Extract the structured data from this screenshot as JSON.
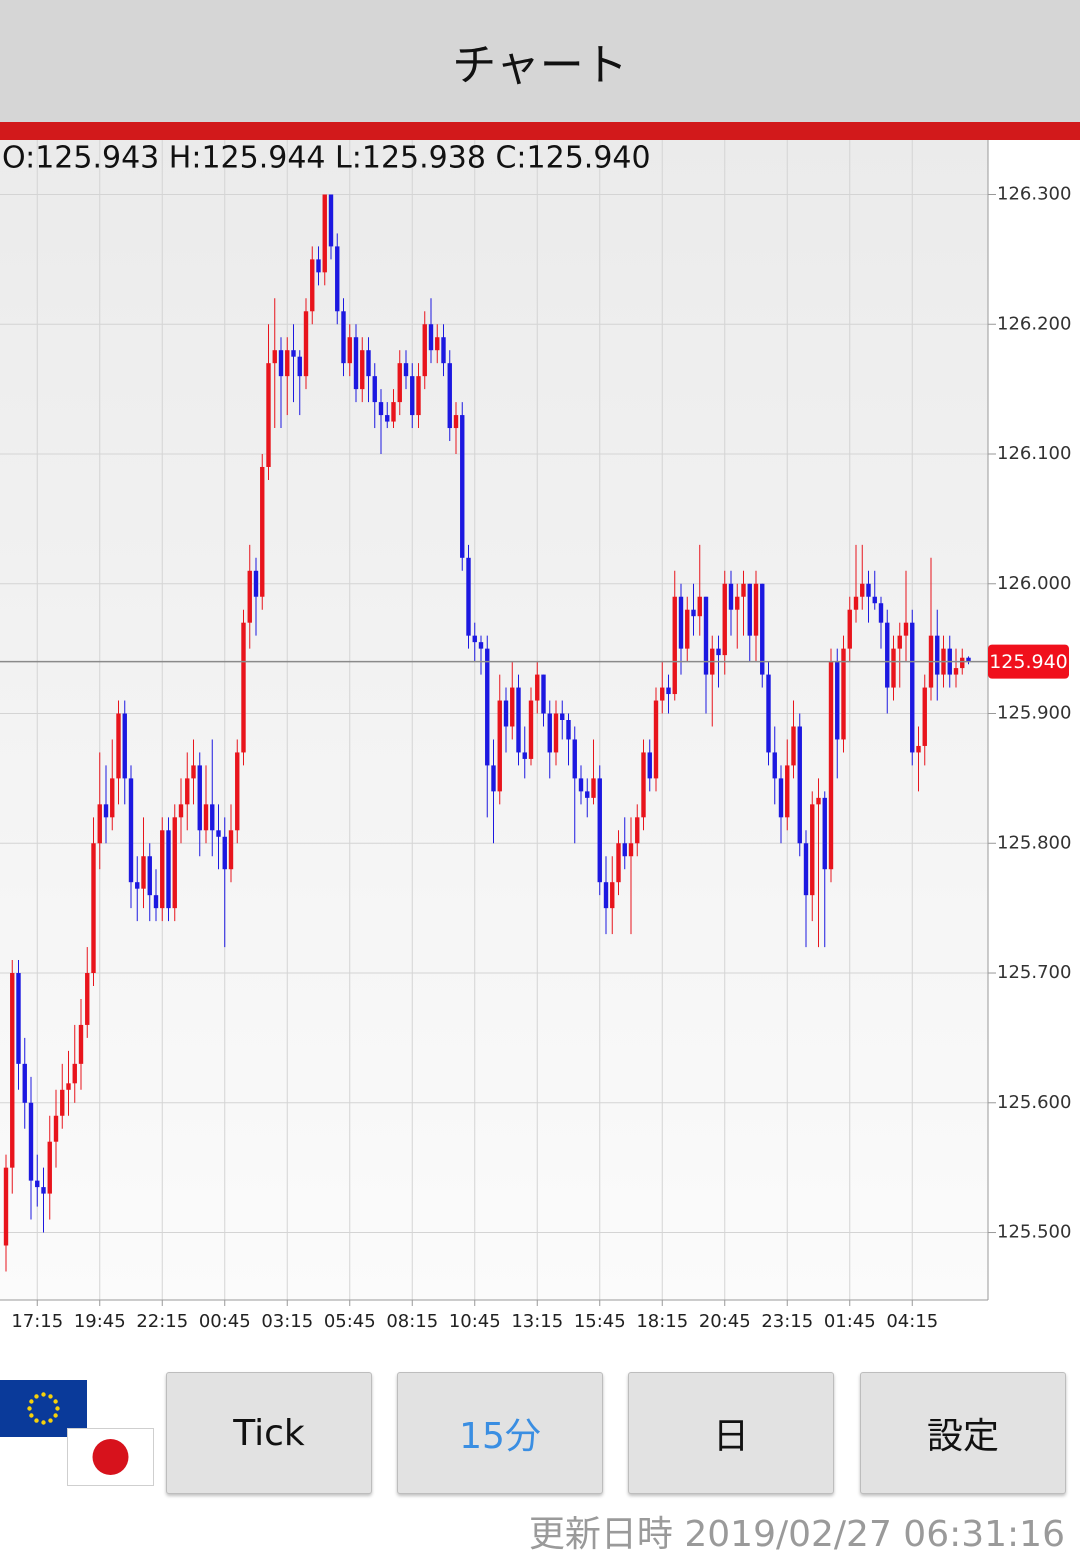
{
  "header": {
    "title": "チャート"
  },
  "chart_data": {
    "type": "candlestick",
    "ohlc_text": "O:125.943 H:125.944 L:125.938 C:125.940",
    "up_color": "#e8141c",
    "down_color": "#1c18e0",
    "grid": true,
    "ylim": [
      125.448,
      126.342
    ],
    "yticks": [
      {
        "value": 125.5,
        "label": "125.500"
      },
      {
        "value": 125.6,
        "label": "125.600"
      },
      {
        "value": 125.7,
        "label": "125.700"
      },
      {
        "value": 125.8,
        "label": "125.800"
      },
      {
        "value": 125.9,
        "label": "125.900"
      },
      {
        "value": 126.0,
        "label": "126.000"
      },
      {
        "value": 126.1,
        "label": "126.100"
      },
      {
        "value": 126.2,
        "label": "126.200"
      },
      {
        "value": 126.3,
        "label": "126.300"
      }
    ],
    "current_price": {
      "value": 125.94,
      "label": "125.940"
    },
    "categories": [
      null,
      null,
      null,
      null,
      null,
      "17:15",
      null,
      null,
      null,
      null,
      null,
      null,
      null,
      null,
      null,
      "19:45",
      null,
      null,
      null,
      null,
      null,
      null,
      null,
      null,
      null,
      "22:15",
      null,
      null,
      null,
      null,
      null,
      null,
      null,
      null,
      null,
      "00:45",
      null,
      null,
      null,
      null,
      null,
      null,
      null,
      null,
      null,
      "03:15",
      null,
      null,
      null,
      null,
      null,
      null,
      null,
      null,
      null,
      "05:45",
      null,
      null,
      null,
      null,
      null,
      null,
      null,
      null,
      null,
      "08:15",
      null,
      null,
      null,
      null,
      null,
      null,
      null,
      null,
      null,
      "10:45",
      null,
      null,
      null,
      null,
      null,
      null,
      null,
      null,
      null,
      "13:15",
      null,
      null,
      null,
      null,
      null,
      null,
      null,
      null,
      null,
      "15:45",
      null,
      null,
      null,
      null,
      null,
      null,
      null,
      null,
      null,
      "18:15",
      null,
      null,
      null,
      null,
      null,
      null,
      null,
      null,
      null,
      "20:45",
      null,
      null,
      null,
      null,
      null,
      null,
      null,
      null,
      null,
      "23:15",
      null,
      null,
      null,
      null,
      null,
      null,
      null,
      null,
      null,
      "01:45",
      null,
      null,
      null,
      null,
      null,
      null,
      null,
      null,
      null,
      "04:15",
      null,
      null,
      null,
      null,
      null,
      null,
      null,
      null,
      null
    ],
    "ohlc": [
      [
        125.49,
        125.56,
        125.47,
        125.55
      ],
      [
        125.55,
        125.71,
        125.53,
        125.7
      ],
      [
        125.7,
        125.71,
        125.61,
        125.63
      ],
      [
        125.63,
        125.65,
        125.58,
        125.6
      ],
      [
        125.6,
        125.62,
        125.51,
        125.54
      ],
      [
        125.54,
        125.56,
        125.52,
        125.535
      ],
      [
        125.535,
        125.55,
        125.5,
        125.53
      ],
      [
        125.53,
        125.59,
        125.51,
        125.57
      ],
      [
        125.57,
        125.61,
        125.55,
        125.59
      ],
      [
        125.59,
        125.63,
        125.58,
        125.61
      ],
      [
        125.61,
        125.64,
        125.59,
        125.615
      ],
      [
        125.615,
        125.66,
        125.6,
        125.63
      ],
      [
        125.63,
        125.68,
        125.61,
        125.66
      ],
      [
        125.66,
        125.72,
        125.65,
        125.7
      ],
      [
        125.7,
        125.82,
        125.69,
        125.8
      ],
      [
        125.8,
        125.87,
        125.78,
        125.83
      ],
      [
        125.83,
        125.86,
        125.8,
        125.82
      ],
      [
        125.82,
        125.88,
        125.81,
        125.85
      ],
      [
        125.85,
        125.91,
        125.83,
        125.9
      ],
      [
        125.9,
        125.91,
        125.83,
        125.85
      ],
      [
        125.85,
        125.86,
        125.75,
        125.77
      ],
      [
        125.77,
        125.79,
        125.74,
        125.765
      ],
      [
        125.765,
        125.82,
        125.75,
        125.79
      ],
      [
        125.79,
        125.8,
        125.74,
        125.76
      ],
      [
        125.76,
        125.78,
        125.74,
        125.75
      ],
      [
        125.75,
        125.82,
        125.74,
        125.81
      ],
      [
        125.81,
        125.82,
        125.74,
        125.75
      ],
      [
        125.75,
        125.83,
        125.74,
        125.82
      ],
      [
        125.82,
        125.85,
        125.8,
        125.83
      ],
      [
        125.83,
        125.87,
        125.81,
        125.85
      ],
      [
        125.85,
        125.88,
        125.83,
        125.86
      ],
      [
        125.86,
        125.87,
        125.79,
        125.81
      ],
      [
        125.81,
        125.86,
        125.8,
        125.83
      ],
      [
        125.83,
        125.88,
        125.79,
        125.81
      ],
      [
        125.81,
        125.83,
        125.78,
        125.805
      ],
      [
        125.805,
        125.82,
        125.72,
        125.78
      ],
      [
        125.78,
        125.83,
        125.77,
        125.81
      ],
      [
        125.81,
        125.88,
        125.8,
        125.87
      ],
      [
        125.87,
        125.98,
        125.86,
        125.97
      ],
      [
        125.97,
        126.03,
        125.95,
        126.01
      ],
      [
        126.01,
        126.02,
        125.96,
        125.99
      ],
      [
        125.99,
        126.1,
        125.98,
        126.09
      ],
      [
        126.09,
        126.2,
        126.08,
        126.17
      ],
      [
        126.17,
        126.22,
        126.12,
        126.18
      ],
      [
        126.18,
        126.19,
        126.12,
        126.16
      ],
      [
        126.16,
        126.19,
        126.13,
        126.18
      ],
      [
        126.18,
        126.2,
        126.14,
        126.175
      ],
      [
        126.175,
        126.18,
        126.13,
        126.16
      ],
      [
        126.16,
        126.22,
        126.15,
        126.21
      ],
      [
        126.21,
        126.26,
        126.2,
        126.25
      ],
      [
        126.25,
        126.26,
        126.23,
        126.24
      ],
      [
        126.24,
        126.3,
        126.23,
        126.3
      ],
      [
        126.3,
        126.3,
        126.25,
        126.26
      ],
      [
        126.26,
        126.27,
        126.2,
        126.21
      ],
      [
        126.21,
        126.22,
        126.16,
        126.17
      ],
      [
        126.17,
        126.2,
        126.16,
        126.19
      ],
      [
        126.19,
        126.2,
        126.14,
        126.15
      ],
      [
        126.15,
        126.19,
        126.14,
        126.18
      ],
      [
        126.18,
        126.19,
        126.14,
        126.16
      ],
      [
        126.16,
        126.17,
        126.12,
        126.14
      ],
      [
        126.14,
        126.15,
        126.1,
        126.13
      ],
      [
        126.13,
        126.14,
        126.12,
        126.125
      ],
      [
        126.125,
        126.15,
        126.12,
        126.14
      ],
      [
        126.14,
        126.18,
        126.13,
        126.17
      ],
      [
        126.17,
        126.18,
        126.15,
        126.16
      ],
      [
        126.16,
        126.17,
        126.12,
        126.13
      ],
      [
        126.13,
        126.17,
        126.12,
        126.16
      ],
      [
        126.16,
        126.21,
        126.15,
        126.2
      ],
      [
        126.2,
        126.22,
        126.17,
        126.18
      ],
      [
        126.18,
        126.2,
        126.17,
        126.19
      ],
      [
        126.19,
        126.2,
        126.16,
        126.17
      ],
      [
        126.17,
        126.18,
        126.11,
        126.12
      ],
      [
        126.12,
        126.14,
        126.1,
        126.13
      ],
      [
        126.13,
        126.14,
        126.01,
        126.02
      ],
      [
        126.02,
        126.03,
        125.95,
        125.96
      ],
      [
        125.96,
        125.97,
        125.94,
        125.955
      ],
      [
        125.955,
        125.96,
        125.93,
        125.95
      ],
      [
        125.95,
        125.96,
        125.82,
        125.86
      ],
      [
        125.86,
        125.88,
        125.8,
        125.84
      ],
      [
        125.84,
        125.93,
        125.83,
        125.91
      ],
      [
        125.91,
        125.92,
        125.87,
        125.89
      ],
      [
        125.89,
        125.94,
        125.88,
        125.92
      ],
      [
        125.92,
        125.93,
        125.86,
        125.87
      ],
      [
        125.87,
        125.89,
        125.85,
        125.865
      ],
      [
        125.865,
        125.92,
        125.86,
        125.91
      ],
      [
        125.91,
        125.94,
        125.9,
        125.93
      ],
      [
        125.93,
        125.93,
        125.89,
        125.9
      ],
      [
        125.9,
        125.91,
        125.85,
        125.87
      ],
      [
        125.87,
        125.91,
        125.86,
        125.9
      ],
      [
        125.9,
        125.91,
        125.88,
        125.895
      ],
      [
        125.895,
        125.9,
        125.86,
        125.88
      ],
      [
        125.88,
        125.89,
        125.8,
        125.85
      ],
      [
        125.85,
        125.86,
        125.83,
        125.84
      ],
      [
        125.84,
        125.85,
        125.82,
        125.835
      ],
      [
        125.835,
        125.88,
        125.83,
        125.85
      ],
      [
        125.85,
        125.86,
        125.76,
        125.77
      ],
      [
        125.77,
        125.79,
        125.73,
        125.75
      ],
      [
        125.75,
        125.79,
        125.73,
        125.77
      ],
      [
        125.77,
        125.81,
        125.76,
        125.8
      ],
      [
        125.8,
        125.82,
        125.78,
        125.79
      ],
      [
        125.79,
        125.82,
        125.73,
        125.8
      ],
      [
        125.8,
        125.83,
        125.79,
        125.82
      ],
      [
        125.82,
        125.88,
        125.81,
        125.87
      ],
      [
        125.87,
        125.88,
        125.84,
        125.85
      ],
      [
        125.85,
        125.92,
        125.84,
        125.91
      ],
      [
        125.91,
        125.94,
        125.9,
        125.92
      ],
      [
        125.92,
        125.93,
        125.9,
        125.915
      ],
      [
        125.915,
        126.01,
        125.91,
        125.99
      ],
      [
        125.99,
        126.0,
        125.93,
        125.95
      ],
      [
        125.95,
        125.99,
        125.94,
        125.98
      ],
      [
        125.98,
        126.0,
        125.96,
        125.975
      ],
      [
        125.975,
        126.03,
        125.96,
        125.99
      ],
      [
        125.99,
        125.99,
        125.9,
        125.93
      ],
      [
        125.93,
        125.96,
        125.89,
        125.95
      ],
      [
        125.95,
        125.96,
        125.92,
        125.945
      ],
      [
        125.945,
        126.01,
        125.93,
        126.0
      ],
      [
        126.0,
        126.01,
        125.96,
        125.98
      ],
      [
        125.98,
        126.0,
        125.95,
        125.99
      ],
      [
        125.99,
        126.01,
        125.96,
        126.0
      ],
      [
        126.0,
        126.0,
        125.94,
        125.96
      ],
      [
        125.96,
        126.01,
        125.94,
        126.0
      ],
      [
        126.0,
        126.0,
        125.92,
        125.93
      ],
      [
        125.93,
        125.94,
        125.86,
        125.87
      ],
      [
        125.87,
        125.89,
        125.83,
        125.85
      ],
      [
        125.85,
        125.86,
        125.8,
        125.82
      ],
      [
        125.82,
        125.88,
        125.81,
        125.86
      ],
      [
        125.86,
        125.91,
        125.85,
        125.89
      ],
      [
        125.89,
        125.9,
        125.79,
        125.8
      ],
      [
        125.8,
        125.81,
        125.72,
        125.76
      ],
      [
        125.76,
        125.84,
        125.74,
        125.83
      ],
      [
        125.83,
        125.85,
        125.72,
        125.835
      ],
      [
        125.835,
        125.84,
        125.72,
        125.78
      ],
      [
        125.78,
        125.95,
        125.77,
        125.94
      ],
      [
        125.94,
        125.95,
        125.85,
        125.88
      ],
      [
        125.88,
        125.96,
        125.87,
        125.95
      ],
      [
        125.95,
        125.99,
        125.94,
        125.98
      ],
      [
        125.98,
        126.03,
        125.97,
        125.99
      ],
      [
        125.99,
        126.03,
        125.98,
        126.0
      ],
      [
        126.0,
        126.01,
        125.97,
        125.99
      ],
      [
        125.99,
        126.01,
        125.98,
        125.985
      ],
      [
        125.985,
        125.99,
        125.95,
        125.97
      ],
      [
        125.97,
        125.98,
        125.9,
        125.92
      ],
      [
        125.92,
        125.96,
        125.91,
        125.95
      ],
      [
        125.95,
        125.97,
        125.92,
        125.96
      ],
      [
        125.96,
        126.01,
        125.94,
        125.97
      ],
      [
        125.97,
        125.98,
        125.86,
        125.87
      ],
      [
        125.87,
        125.89,
        125.84,
        125.875
      ],
      [
        125.875,
        125.93,
        125.86,
        125.92
      ],
      [
        125.92,
        126.02,
        125.91,
        125.96
      ],
      [
        125.96,
        125.98,
        125.91,
        125.93
      ],
      [
        125.93,
        125.96,
        125.92,
        125.95
      ],
      [
        125.95,
        125.96,
        125.92,
        125.93
      ],
      [
        125.93,
        125.95,
        125.92,
        125.935
      ],
      [
        125.935,
        125.95,
        125.93,
        125.943
      ],
      [
        125.943,
        125.944,
        125.938,
        125.94
      ]
    ]
  },
  "buttons": [
    "Tick",
    "15分",
    "日",
    "設定"
  ],
  "selected_button": 1,
  "footer": {
    "label": "更新日時",
    "timestamp": "2019/02/27 06:31:16"
  }
}
